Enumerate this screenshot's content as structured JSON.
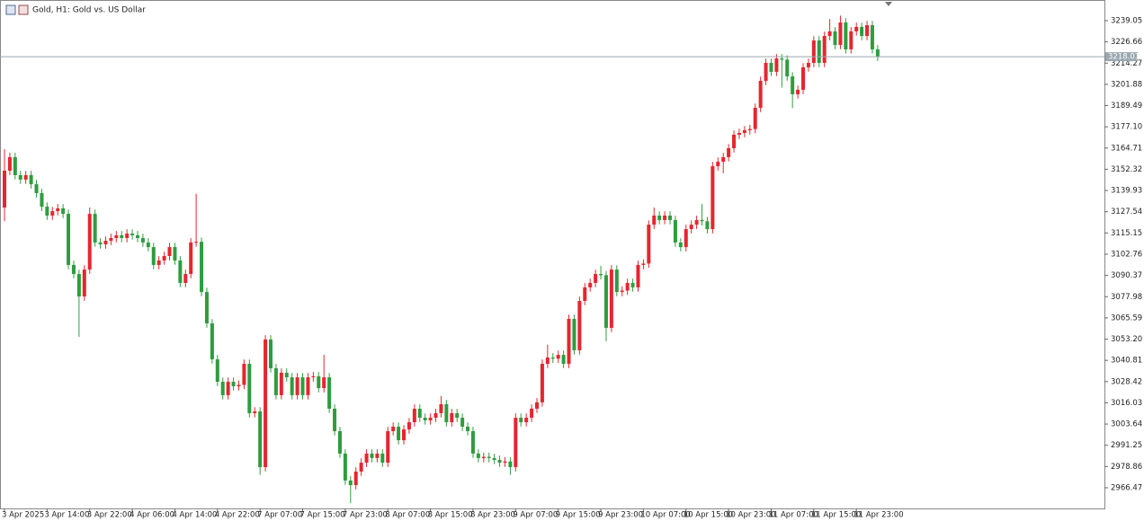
{
  "chart_data": {
    "type": "candlestick",
    "title": "Gold, H1: Gold vs. US Dollar",
    "up_color": "#e5262f",
    "down_color": "#2f9c3f",
    "grid": false,
    "bid": 3218.01,
    "ylim": [
      2954.4,
      3251.1
    ],
    "yticks": [
      3239.05,
      3226.66,
      3214.27,
      3201.88,
      3189.49,
      {
        "value": 3177.1,
        "label": "3177.10"
      },
      3164.71,
      3152.32,
      3139.93,
      3127.54,
      3115.15,
      3102.76,
      3090.37,
      3077.98,
      3065.59,
      {
        "value": 3053.2,
        "label": "3053.20"
      },
      3040.81,
      3028.42,
      3016.03,
      3003.64,
      2991.25,
      2978.86,
      2966.47
    ],
    "categories": [
      "3 Apr 2025",
      null,
      null,
      null,
      null,
      null,
      null,
      null,
      "3 Apr 14:00",
      null,
      null,
      null,
      null,
      null,
      null,
      null,
      "3 Apr 22:00",
      null,
      null,
      null,
      null,
      null,
      null,
      null,
      "4 Apr 06:00",
      null,
      null,
      null,
      null,
      null,
      null,
      null,
      "4 Apr 14:00",
      null,
      null,
      null,
      null,
      null,
      null,
      null,
      "4 Apr 22:00",
      null,
      null,
      null,
      null,
      null,
      null,
      null,
      "7 Apr 07:00",
      null,
      null,
      null,
      null,
      null,
      null,
      null,
      "7 Apr 15:00",
      null,
      null,
      null,
      null,
      null,
      null,
      null,
      "7 Apr 23:00",
      null,
      null,
      null,
      null,
      null,
      null,
      null,
      "8 Apr 07:00",
      null,
      null,
      null,
      null,
      null,
      null,
      null,
      "8 Apr 15:00",
      null,
      null,
      null,
      null,
      null,
      null,
      null,
      "8 Apr 23:00",
      null,
      null,
      null,
      null,
      null,
      null,
      null,
      "9 Apr 07:00",
      null,
      null,
      null,
      null,
      null,
      null,
      null,
      "9 Apr 15:00",
      null,
      null,
      null,
      null,
      null,
      null,
      null,
      "9 Apr 23:00",
      null,
      null,
      null,
      null,
      null,
      null,
      null,
      "10 Apr 07:00",
      null,
      null,
      null,
      null,
      null,
      null,
      null,
      "10 Apr 15:00",
      null,
      null,
      null,
      null,
      null,
      null,
      null,
      "10 Apr 23:00",
      null,
      null,
      null,
      null,
      null,
      null,
      null,
      "11 Apr 07:00",
      null,
      null,
      null,
      null,
      null,
      null,
      null,
      "11 Apr 15:00",
      null,
      null,
      null,
      null,
      null,
      null,
      null,
      "11 Apr 23:00",
      null,
      null,
      null,
      null
    ],
    "open": [
      3130.0,
      3151.5,
      3159.4,
      3148.9,
      3146.3,
      3148.9,
      3143.6,
      3138.4,
      3130.5,
      3125.3,
      3127.9,
      3129.5,
      3126.3,
      3096.5,
      3091.2,
      3078.1,
      3093.8,
      3126.3,
      3109.6,
      3108.5,
      3110.6,
      3112.2,
      3113.8,
      3112.2,
      3114.8,
      3113.8,
      3112.2,
      3109.6,
      3106.9,
      3096.5,
      3099.1,
      3101.7,
      3106.9,
      3099.1,
      3086.0,
      3091.2,
      3109.6,
      3110.0,
      3080.7,
      3062.4,
      3041.4,
      3028.3,
      3020.5,
      3028.3,
      3025.7,
      3026.5,
      3038.8,
      3010.0,
      3011.0,
      2978.5,
      3053.0,
      3036.2,
      3020.5,
      3033.6,
      3030.9,
      3020.5,
      3030.9,
      3020.5,
      3030.9,
      3031.5,
      3024.6,
      3030.9,
      3012.6,
      2999.5,
      2986.4,
      2970.7,
      2968.0,
      2975.9,
      2981.1,
      2986.4,
      2983.8,
      2986.4,
      2981.1,
      2999.5,
      3002.1,
      2994.2,
      3000.5,
      3004.7,
      3012.6,
      3007.3,
      3005.8,
      3007.3,
      3010.0,
      3015.2,
      3004.7,
      3010.0,
      3007.3,
      3002.1,
      2999.5,
      2986.4,
      2983.8,
      2984.5,
      2983.8,
      2982.7,
      2981.1,
      2981.8,
      2978.5,
      3007.3,
      3004.7,
      3007.3,
      3012.6,
      3016.3,
      3038.8,
      3042.5,
      3041.8,
      3044.0,
      3038.8,
      3065.0,
      3046.7,
      3075.5,
      3083.4,
      3086.0,
      3091.2,
      3090.5,
      3059.8,
      3093.8,
      3080.7,
      3081.5,
      3086.0,
      3083.4,
      3096.5,
      3097.3,
      3120.0,
      3125.3,
      3122.7,
      3125.3,
      3122.7,
      3109.6,
      3106.9,
      3117.4,
      3120.0,
      3122.7,
      3122.0,
      3117.4,
      3154.1,
      3156.7,
      3159.4,
      3164.6,
      3172.5,
      3173.5,
      3175.1,
      3175.8,
      3188.2,
      3203.9,
      3214.4,
      3209.2,
      3217.0,
      3216.3,
      3206.5,
      3196.1,
      3198.7,
      3211.8,
      3214.4,
      3227.5,
      3214.4,
      3230.1,
      3232.8,
      3224.9,
      3238.0,
      3222.3,
      3232.8,
      3235.4,
      3230.1,
      3236.4,
      3222.3
    ],
    "high": [
      3164.0,
      3162.0,
      3162.0,
      3151.4,
      3151.4,
      3151.4,
      3146.1,
      3140.9,
      3133.0,
      3130.4,
      3132.0,
      3132.0,
      3128.8,
      3099.0,
      3093.7,
      3096.3,
      3130.0,
      3128.8,
      3112.1,
      3113.1,
      3114.7,
      3116.3,
      3116.3,
      3117.3,
      3117.3,
      3116.3,
      3114.7,
      3112.1,
      3109.4,
      3101.6,
      3104.2,
      3109.4,
      3109.4,
      3101.6,
      3093.7,
      3112.1,
      3138.0,
      3112.5,
      3083.2,
      3064.9,
      3043.9,
      3030.8,
      3030.8,
      3030.8,
      3029.0,
      3041.3,
      3041.3,
      3013.5,
      3013.5,
      3055.5,
      3055.5,
      3038.7,
      3036.1,
      3036.1,
      3033.4,
      3033.4,
      3033.4,
      3033.4,
      3034.0,
      3034.0,
      3044.0,
      3033.4,
      3015.1,
      3002.0,
      2988.9,
      2973.2,
      2978.4,
      2983.6,
      2988.9,
      2988.9,
      2988.9,
      2988.9,
      3002.0,
      3004.6,
      3004.6,
      3003.0,
      3007.2,
      3015.1,
      3015.1,
      3009.8,
      3009.8,
      3012.5,
      3020.0,
      3017.7,
      3012.5,
      3012.5,
      3009.8,
      3004.6,
      3002.0,
      2988.9,
      2987.0,
      2987.0,
      2986.3,
      2985.2,
      2984.3,
      2984.3,
      3009.8,
      3009.8,
      3009.8,
      3015.1,
      3018.8,
      3041.3,
      3050.0,
      3045.0,
      3046.5,
      3046.5,
      3067.5,
      3067.5,
      3078.0,
      3085.9,
      3088.5,
      3093.7,
      3096.0,
      3093.0,
      3096.3,
      3096.3,
      3084.0,
      3088.5,
      3088.5,
      3099.0,
      3099.8,
      3122.5,
      3130.0,
      3127.8,
      3127.8,
      3127.8,
      3125.2,
      3112.1,
      3119.9,
      3122.5,
      3125.2,
      3132.0,
      3124.5,
      3156.6,
      3159.2,
      3161.9,
      3167.1,
      3175.0,
      3176.0,
      3177.6,
      3178.3,
      3190.7,
      3206.4,
      3216.9,
      3216.9,
      3219.5,
      3219.5,
      3218.8,
      3209.0,
      3201.2,
      3214.3,
      3216.9,
      3230.0,
      3230.0,
      3232.6,
      3240.0,
      3235.3,
      3242.0,
      3240.5,
      3235.3,
      3237.9,
      3237.9,
      3238.9,
      3238.9,
      3224.8
    ],
    "low": [
      3122.0,
      3149.0,
      3146.4,
      3143.8,
      3143.8,
      3141.1,
      3135.9,
      3128.0,
      3122.8,
      3122.8,
      3125.4,
      3123.8,
      3094.0,
      3088.7,
      3054.5,
      3075.6,
      3091.3,
      3107.1,
      3106.0,
      3106.0,
      3108.1,
      3109.7,
      3109.7,
      3109.7,
      3111.3,
      3109.7,
      3107.1,
      3104.4,
      3094.0,
      3094.0,
      3096.6,
      3099.2,
      3096.6,
      3083.5,
      3083.5,
      3088.7,
      3107.1,
      3078.2,
      3059.9,
      3038.9,
      3025.8,
      3018.0,
      3018.0,
      3023.2,
      3023.2,
      3024.0,
      3007.5,
      3007.5,
      2974.0,
      2976.0,
      3033.7,
      3018.0,
      3018.0,
      3028.4,
      3018.0,
      3018.0,
      3018.0,
      3018.0,
      3028.4,
      3022.1,
      3022.1,
      3010.1,
      2997.0,
      2983.9,
      2968.2,
      2957.5,
      2965.5,
      2973.4,
      2978.6,
      2981.3,
      2981.3,
      2978.6,
      2978.6,
      2997.0,
      2991.7,
      2991.7,
      2998.0,
      3002.2,
      3004.8,
      3003.3,
      3003.3,
      3004.8,
      3007.5,
      3002.2,
      3002.2,
      3004.8,
      2999.6,
      2997.0,
      2983.9,
      2981.3,
      2981.3,
      2981.3,
      2980.2,
      2978.6,
      2978.6,
      2974.0,
      2976.0,
      3002.2,
      3002.2,
      3004.8,
      3010.1,
      3013.8,
      3036.3,
      3039.3,
      3039.3,
      3036.3,
      3036.3,
      3044.2,
      3044.2,
      3073.0,
      3080.9,
      3083.5,
      3088.0,
      3052.0,
      3057.3,
      3078.2,
      3078.2,
      3079.0,
      3080.9,
      3080.9,
      3094.0,
      3094.8,
      3117.5,
      3120.2,
      3120.2,
      3120.2,
      3107.1,
      3104.4,
      3104.4,
      3114.9,
      3117.5,
      3119.5,
      3114.9,
      3114.9,
      3151.6,
      3150.0,
      3156.9,
      3162.1,
      3170.0,
      3171.0,
      3172.6,
      3173.3,
      3185.7,
      3201.4,
      3206.7,
      3206.7,
      3200.0,
      3204.0,
      3188.0,
      3193.6,
      3196.2,
      3209.3,
      3211.9,
      3211.9,
      3211.9,
      3227.6,
      3222.4,
      3222.4,
      3219.8,
      3219.8,
      3230.3,
      3227.6,
      3227.6,
      3219.8,
      3215.5
    ],
    "close": [
      3151.5,
      3159.4,
      3148.9,
      3146.3,
      3148.9,
      3143.6,
      3138.4,
      3130.5,
      3125.3,
      3127.9,
      3129.5,
      3126.3,
      3096.5,
      3091.2,
      3078.1,
      3093.8,
      3126.3,
      3109.6,
      3108.5,
      3110.6,
      3112.2,
      3113.8,
      3112.2,
      3114.8,
      3113.8,
      3112.2,
      3109.6,
      3106.9,
      3096.5,
      3099.1,
      3101.7,
      3106.9,
      3099.1,
      3086.0,
      3091.2,
      3109.6,
      3110.0,
      3080.7,
      3062.4,
      3041.4,
      3028.3,
      3020.5,
      3028.3,
      3025.7,
      3026.5,
      3038.8,
      3010.0,
      3011.0,
      2978.5,
      3053.0,
      3036.2,
      3020.5,
      3033.6,
      3030.9,
      3020.5,
      3030.9,
      3020.5,
      3030.9,
      3031.5,
      3024.6,
      3030.9,
      3012.6,
      2999.5,
      2986.4,
      2970.7,
      2968.0,
      2975.9,
      2981.1,
      2986.4,
      2983.8,
      2986.4,
      2981.1,
      2999.5,
      3002.1,
      2994.2,
      3000.5,
      3004.7,
      3012.6,
      3007.3,
      3005.8,
      3007.3,
      3010.0,
      3015.2,
      3004.7,
      3010.0,
      3007.3,
      3002.1,
      2999.5,
      2986.4,
      2983.8,
      2984.5,
      2983.8,
      2982.7,
      2981.1,
      2981.8,
      2978.5,
      3007.3,
      3004.7,
      3007.3,
      3012.6,
      3016.3,
      3038.8,
      3042.5,
      3041.8,
      3044.0,
      3038.8,
      3065.0,
      3046.7,
      3075.5,
      3083.4,
      3086.0,
      3091.2,
      3090.5,
      3059.8,
      3093.8,
      3080.7,
      3081.5,
      3086.0,
      3083.4,
      3096.5,
      3097.3,
      3120.0,
      3125.3,
      3122.7,
      3125.3,
      3122.7,
      3109.6,
      3106.9,
      3117.4,
      3120.0,
      3122.7,
      3122.0,
      3117.4,
      3154.1,
      3156.7,
      3159.4,
      3164.6,
      3172.5,
      3173.5,
      3175.1,
      3175.8,
      3188.2,
      3203.9,
      3214.4,
      3209.2,
      3217.0,
      3216.3,
      3206.5,
      3196.1,
      3198.7,
      3211.8,
      3214.4,
      3227.5,
      3214.4,
      3230.1,
      3232.8,
      3224.9,
      3238.0,
      3222.3,
      3232.8,
      3235.4,
      3230.1,
      3236.4,
      3222.3,
      3218.01
    ]
  }
}
